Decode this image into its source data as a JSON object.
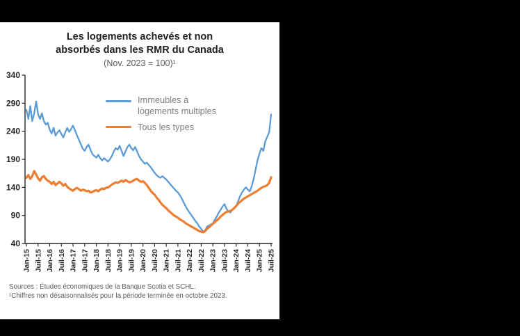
{
  "chart_data": {
    "type": "line",
    "title": "Les logements achevés et non absorbés dans les RMR du Canada",
    "subtitle": "(Nov. 2023 = 100)¹",
    "xlabel": "",
    "ylabel": "",
    "ylim": [
      40,
      340
    ],
    "y_ticks": [
      40,
      90,
      140,
      190,
      240,
      290,
      340
    ],
    "grid": false,
    "legend_position": "inside-top",
    "x_tick_labels": [
      "Jan-15",
      "Juil-15",
      "Jan-16",
      "Juil-16",
      "Jan-17",
      "Juil-17",
      "Jan-18",
      "Juil-18",
      "Jan-19",
      "Juil-19",
      "Jan-20",
      "Juil-20",
      "Jan-21",
      "Juil-21",
      "Jan-22",
      "Juil-22",
      "Jan-23",
      "Juil-23",
      "Jan-24",
      "Juil-24",
      "Jan-25",
      "Juil-25"
    ],
    "x": [
      "2015-01",
      "2015-02",
      "2015-03",
      "2015-04",
      "2015-05",
      "2015-06",
      "2015-07",
      "2015-08",
      "2015-09",
      "2015-10",
      "2015-11",
      "2015-12",
      "2016-01",
      "2016-02",
      "2016-03",
      "2016-04",
      "2016-05",
      "2016-06",
      "2016-07",
      "2016-08",
      "2016-09",
      "2016-10",
      "2016-11",
      "2016-12",
      "2017-01",
      "2017-02",
      "2017-03",
      "2017-04",
      "2017-05",
      "2017-06",
      "2017-07",
      "2017-08",
      "2017-09",
      "2017-10",
      "2017-11",
      "2017-12",
      "2018-01",
      "2018-02",
      "2018-03",
      "2018-04",
      "2018-05",
      "2018-06",
      "2018-07",
      "2018-08",
      "2018-09",
      "2018-10",
      "2018-11",
      "2018-12",
      "2019-01",
      "2019-02",
      "2019-03",
      "2019-04",
      "2019-05",
      "2019-06",
      "2019-07",
      "2019-08",
      "2019-09",
      "2019-10",
      "2019-11",
      "2019-12",
      "2020-01",
      "2020-02",
      "2020-03",
      "2020-04",
      "2020-05",
      "2020-06",
      "2020-07",
      "2020-08",
      "2020-09",
      "2020-10",
      "2020-11",
      "2020-12",
      "2021-01",
      "2021-02",
      "2021-03",
      "2021-04",
      "2021-05",
      "2021-06",
      "2021-07",
      "2021-08",
      "2021-09",
      "2021-10",
      "2021-11",
      "2021-12",
      "2022-01",
      "2022-02",
      "2022-03",
      "2022-04",
      "2022-05",
      "2022-06",
      "2022-07",
      "2022-08",
      "2022-09",
      "2022-10",
      "2022-11",
      "2022-12",
      "2023-01",
      "2023-02",
      "2023-03",
      "2023-04",
      "2023-05",
      "2023-06",
      "2023-07",
      "2023-08",
      "2023-09",
      "2023-10",
      "2023-11",
      "2023-12",
      "2024-01",
      "2024-02",
      "2024-03",
      "2024-04",
      "2024-05",
      "2024-06",
      "2024-07",
      "2024-08",
      "2024-09",
      "2024-10",
      "2024-11",
      "2024-12",
      "2025-01",
      "2025-02",
      "2025-03",
      "2025-04",
      "2025-05",
      "2025-06",
      "2025-07"
    ],
    "series": [
      {
        "name": "Immeubles à logements multiples",
        "color": "#5b9bd5",
        "values": [
          278,
          262,
          285,
          258,
          272,
          293,
          270,
          262,
          272,
          258,
          252,
          255,
          243,
          236,
          246,
          232,
          238,
          242,
          235,
          229,
          238,
          246,
          239,
          244,
          250,
          242,
          233,
          225,
          217,
          209,
          205,
          212,
          216,
          207,
          199,
          196,
          193,
          198,
          192,
          188,
          192,
          189,
          186,
          190,
          196,
          204,
          210,
          207,
          214,
          205,
          196,
          204,
          212,
          216,
          210,
          206,
          212,
          204,
          196,
          190,
          186,
          182,
          184,
          180,
          176,
          171,
          166,
          162,
          159,
          157,
          160,
          157,
          154,
          150,
          146,
          142,
          138,
          134,
          131,
          126,
          120,
          113,
          106,
          100,
          95,
          90,
          85,
          80,
          76,
          70,
          66,
          61,
          63,
          70,
          72,
          74,
          76,
          82,
          88,
          95,
          100,
          106,
          110,
          102,
          97,
          95,
          100,
          104,
          106,
          115,
          124,
          131,
          136,
          140,
          136,
          133,
          142,
          155,
          172,
          188,
          200,
          210,
          205,
          222,
          230,
          238,
          270
        ]
      },
      {
        "name": "Tous les types",
        "color": "#ed7d31",
        "values": [
          157,
          162,
          155,
          160,
          169,
          163,
          156,
          152,
          158,
          160,
          155,
          152,
          150,
          146,
          150,
          144,
          147,
          150,
          147,
          143,
          146,
          141,
          138,
          136,
          134,
          137,
          139,
          137,
          134,
          136,
          135,
          133,
          134,
          131,
          132,
          134,
          135,
          133,
          136,
          138,
          137,
          139,
          140,
          142,
          145,
          147,
          149,
          148,
          150,
          152,
          150,
          153,
          151,
          149,
          150,
          152,
          154,
          155,
          152,
          150,
          151,
          148,
          144,
          139,
          134,
          130,
          127,
          122,
          118,
          113,
          109,
          106,
          103,
          99,
          96,
          93,
          90,
          88,
          86,
          83,
          81,
          79,
          76,
          74,
          72,
          70,
          68,
          66,
          64,
          62,
          61,
          60,
          62,
          66,
          69,
          72,
          75,
          78,
          81,
          84,
          88,
          91,
          94,
          96,
          97,
          98,
          100,
          103,
          107,
          111,
          114,
          117,
          120,
          122,
          124,
          126,
          128,
          130,
          132,
          134,
          137,
          139,
          141,
          142,
          144,
          148,
          158
        ]
      }
    ]
  },
  "notes": {
    "source_line": "Sources : Études économiques de la Banque Scotia et SCHL.",
    "footnote": "¹Chiffres non désaisonnalisés pour la période terminée en octobre 2023."
  }
}
